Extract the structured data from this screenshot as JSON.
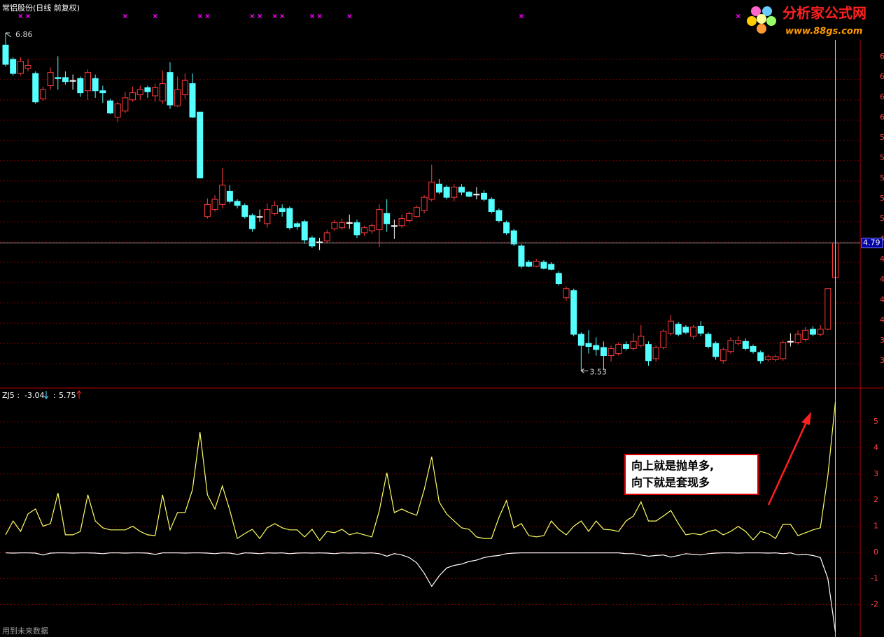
{
  "chart_data": [
    {
      "type": "candlestick",
      "title": "常铝股份(日线 前复权)",
      "up_color": "#ff3c3c",
      "down_color": "#54ffff",
      "flat_color": "#ffffff",
      "signal_color": "#ff00ff",
      "ylim": [
        3.36,
        7.06
      ],
      "yticks": [
        {
          "value": 6.6,
          "label": "6"
        },
        {
          "value": 6.4,
          "label": "6"
        },
        {
          "value": 6.2,
          "label": "6"
        },
        {
          "value": 6.0,
          "label": "6"
        },
        {
          "value": 5.8,
          "label": "5"
        },
        {
          "value": 5.6,
          "label": "5"
        },
        {
          "value": 5.4,
          "label": "5"
        },
        {
          "value": 5.2,
          "label": "5"
        },
        {
          "value": 5.0,
          "label": "5"
        },
        {
          "value": 4.8,
          "label": "4"
        },
        {
          "value": 4.6,
          "label": "4"
        },
        {
          "value": 4.4,
          "label": "4"
        },
        {
          "value": 4.2,
          "label": "4"
        },
        {
          "value": 4.0,
          "label": "4"
        },
        {
          "value": 3.8,
          "label": "3"
        },
        {
          "value": 3.6,
          "label": "3"
        }
      ],
      "grid": true,
      "signals": [
        2,
        3,
        16,
        20,
        26,
        27,
        33,
        34,
        36,
        37,
        41,
        42,
        46,
        69,
        98
      ],
      "open": [
        6.74,
        6.6,
        6.46,
        6.51,
        6.46,
        6.21,
        6.34,
        6.42,
        6.42,
        6.39,
        6.41,
        6.29,
        6.41,
        6.29,
        6.19,
        6.03,
        6.09,
        6.2,
        6.25,
        6.32,
        6.24,
        6.19,
        6.47,
        6.14,
        6.25,
        6.36,
        6.08,
        5.05,
        5.12,
        5.17,
        5.3,
        5.2,
        5.16,
        5.06,
        5.05,
        4.98,
        5.08,
        5.13,
        5.13,
        4.98,
        5.0,
        4.84,
        4.8,
        4.81,
        4.93,
        4.94,
        4.99,
        4.99,
        4.89,
        4.91,
        4.92,
        5.08,
        4.96,
        4.96,
        5.01,
        5.05,
        5.11,
        5.22,
        5.37,
        5.34,
        5.24,
        5.34,
        5.29,
        5.27,
        5.28,
        5.22,
        5.11,
        4.99,
        4.91,
        4.76,
        4.6,
        4.56,
        4.6,
        4.58,
        4.49,
        4.25,
        4.32,
        3.89,
        3.8,
        3.78,
        3.76,
        3.68,
        3.7,
        3.79,
        3.75,
        3.78,
        3.79,
        3.65,
        3.76,
        3.9,
        3.99,
        3.96,
        3.87,
        3.97,
        3.89,
        3.8,
        3.63,
        3.72,
        3.8,
        3.82,
        3.77,
        3.71,
        3.64,
        3.64,
        3.65,
        3.82,
        3.81,
        3.84,
        3.94,
        3.89,
        3.94,
        4.45
      ],
      "high": [
        6.86,
        6.62,
        6.62,
        6.6,
        6.48,
        6.33,
        6.52,
        6.63,
        6.48,
        6.45,
        6.43,
        6.5,
        6.45,
        6.34,
        6.21,
        6.18,
        6.28,
        6.33,
        6.34,
        6.34,
        6.36,
        6.49,
        6.57,
        6.43,
        6.46,
        6.46,
        6.08,
        5.23,
        5.26,
        5.53,
        5.36,
        5.22,
        5.18,
        5.08,
        5.12,
        5.18,
        5.2,
        5.17,
        5.15,
        5.0,
        5.02,
        4.86,
        4.84,
        4.92,
        5.02,
        5.03,
        5.07,
        5.02,
        4.96,
        4.98,
        5.17,
        5.22,
        5.02,
        5.07,
        5.1,
        5.16,
        5.26,
        5.56,
        5.42,
        5.36,
        5.37,
        5.37,
        5.3,
        5.34,
        5.31,
        5.24,
        5.13,
        5.01,
        4.93,
        4.78,
        4.62,
        4.63,
        4.62,
        4.6,
        4.51,
        4.36,
        4.34,
        3.91,
        3.93,
        3.86,
        3.82,
        3.78,
        3.81,
        3.82,
        3.9,
        3.98,
        3.82,
        3.78,
        3.94,
        4.08,
        4.01,
        3.98,
        3.98,
        4.02,
        3.91,
        3.82,
        3.76,
        3.86,
        3.87,
        3.85,
        3.79,
        3.73,
        3.69,
        3.69,
        3.83,
        3.9,
        3.93,
        3.96,
        3.97,
        3.98,
        4.34,
        4.79
      ],
      "low": [
        6.53,
        6.44,
        6.44,
        6.48,
        6.16,
        6.19,
        6.3,
        6.3,
        6.35,
        6.3,
        6.23,
        6.2,
        6.22,
        6.17,
        6.06,
        5.98,
        6.07,
        6.18,
        6.2,
        6.22,
        6.18,
        6.16,
        6.11,
        6.13,
        6.21,
        6.02,
        5.43,
        5.03,
        5.1,
        5.13,
        5.18,
        5.13,
        5.03,
        4.9,
        5.0,
        4.94,
        5.06,
        5.05,
        4.92,
        4.92,
        4.78,
        4.74,
        4.72,
        4.79,
        4.91,
        4.92,
        4.93,
        4.84,
        4.86,
        4.88,
        4.75,
        4.9,
        4.83,
        4.94,
        4.99,
        5.04,
        5.08,
        5.2,
        5.27,
        5.22,
        5.2,
        5.26,
        5.24,
        5.22,
        5.2,
        5.08,
        4.99,
        4.87,
        4.76,
        4.54,
        4.55,
        4.55,
        4.53,
        4.52,
        4.37,
        4.22,
        3.87,
        3.53,
        3.7,
        3.68,
        3.54,
        3.62,
        3.68,
        3.73,
        3.73,
        3.76,
        3.58,
        3.62,
        3.74,
        3.88,
        3.87,
        3.89,
        3.84,
        3.87,
        3.75,
        3.64,
        3.6,
        3.7,
        3.78,
        3.73,
        3.7,
        3.6,
        3.62,
        3.62,
        3.63,
        3.77,
        3.79,
        3.82,
        3.87,
        3.87,
        3.93,
        4.42
      ],
      "close": [
        6.55,
        6.46,
        6.58,
        6.54,
        6.18,
        6.3,
        6.47,
        6.41,
        6.38,
        6.39,
        6.27,
        6.47,
        6.29,
        6.27,
        6.07,
        6.16,
        6.22,
        6.27,
        6.3,
        6.28,
        6.32,
        6.36,
        6.15,
        6.3,
        6.39,
        6.03,
        5.43,
        5.17,
        5.22,
        5.36,
        5.2,
        5.16,
        5.05,
        4.93,
        5.05,
        5.12,
        5.16,
        5.1,
        4.94,
        4.95,
        4.82,
        4.76,
        4.8,
        4.89,
        4.99,
        4.99,
        4.99,
        4.87,
        4.94,
        4.96,
        5.12,
        4.98,
        4.96,
        5.03,
        5.08,
        5.14,
        5.24,
        5.39,
        5.29,
        5.24,
        5.34,
        5.29,
        5.25,
        5.27,
        5.22,
        5.1,
        5.01,
        4.89,
        4.78,
        4.56,
        4.56,
        4.61,
        4.54,
        4.53,
        4.39,
        4.34,
        3.89,
        3.78,
        3.77,
        3.74,
        3.68,
        3.75,
        3.79,
        3.75,
        3.82,
        3.87,
        3.63,
        3.76,
        3.92,
        4.02,
        3.89,
        3.91,
        3.96,
        3.9,
        3.77,
        3.67,
        3.74,
        3.83,
        3.83,
        3.75,
        3.72,
        3.63,
        3.67,
        3.67,
        3.81,
        3.82,
        3.89,
        3.93,
        3.89,
        3.94,
        4.34,
        4.79
      ]
    },
    {
      "type": "line",
      "title": "ZJ5 :",
      "separator": ":",
      "note": "用到未来数据",
      "annotations": [
        "向上就是抛单多,",
        "向下就是套现多"
      ],
      "ylim": [
        -3.24,
        6.26
      ],
      "yticks": [
        -2,
        -1,
        0,
        1,
        2,
        3,
        4,
        5
      ],
      "grid": true,
      "series": [
        {
          "color": "#ffff66",
          "values": [
            0.67,
            1.2,
            0.8,
            1.47,
            1.66,
            1.0,
            1.1,
            2.27,
            0.67,
            0.67,
            0.8,
            2.2,
            1.2,
            0.94,
            0.86,
            0.86,
            0.86,
            1.0,
            0.8,
            0.67,
            0.64,
            2.2,
            0.86,
            1.52,
            1.52,
            2.4,
            4.6,
            2.2,
            1.66,
            2.54,
            1.6,
            0.53,
            0.72,
            0.88,
            0.53,
            0.94,
            1.1,
            0.94,
            0.86,
            0.86,
            0.59,
            0.88,
            0.45,
            0.8,
            0.75,
            0.88,
            0.67,
            0.75,
            0.67,
            0.59,
            1.6,
            3.05,
            1.52,
            1.66,
            1.52,
            1.42,
            2.4,
            3.66,
            1.93,
            1.47,
            1.2,
            0.94,
            0.88,
            0.59,
            0.53,
            0.53,
            1.34,
            1.98,
            0.94,
            1.1,
            0.64,
            0.59,
            0.64,
            1.2,
            0.88,
            0.67,
            1.0,
            1.2,
            0.8,
            1.2,
            0.88,
            0.86,
            0.8,
            1.2,
            1.39,
            1.93,
            1.2,
            1.2,
            1.39,
            1.6,
            1.1,
            0.67,
            0.72,
            0.67,
            0.8,
            0.86,
            0.67,
            0.8,
            0.99,
            0.8,
            0.48,
            0.8,
            0.72,
            0.53,
            1.07,
            1.07,
            0.64,
            0.75,
            0.86,
            0.94,
            2.94,
            5.75
          ]
        },
        {
          "color": "#ffffff",
          "values": [
            -0.02,
            -0.03,
            -0.02,
            -0.02,
            -0.03,
            -0.1,
            -0.03,
            -0.02,
            -0.02,
            -0.03,
            -0.02,
            -0.02,
            -0.03,
            -0.05,
            -0.02,
            -0.02,
            -0.03,
            -0.02,
            -0.02,
            -0.03,
            -0.08,
            -0.02,
            -0.02,
            -0.02,
            -0.03,
            -0.02,
            -0.02,
            -0.03,
            -0.05,
            -0.02,
            -0.03,
            -0.08,
            -0.02,
            -0.03,
            -0.05,
            -0.02,
            -0.03,
            -0.02,
            -0.05,
            -0.03,
            -0.02,
            -0.03,
            -0.02,
            -0.03,
            -0.05,
            -0.02,
            -0.03,
            -0.02,
            -0.03,
            -0.02,
            -0.05,
            -0.15,
            -0.05,
            -0.1,
            -0.2,
            -0.4,
            -0.8,
            -1.3,
            -0.9,
            -0.6,
            -0.5,
            -0.45,
            -0.35,
            -0.3,
            -0.2,
            -0.15,
            -0.12,
            -0.05,
            -0.03,
            -0.02,
            -0.02,
            -0.02,
            -0.02,
            -0.02,
            -0.02,
            -0.02,
            -0.02,
            -0.02,
            -0.02,
            -0.02,
            -0.02,
            -0.02,
            -0.02,
            -0.05,
            -0.05,
            -0.1,
            -0.15,
            -0.12,
            -0.1,
            -0.18,
            -0.12,
            -0.05,
            -0.08,
            -0.1,
            -0.05,
            -0.03,
            -0.02,
            -0.02,
            -0.03,
            -0.02,
            -0.02,
            -0.02,
            -0.03,
            -0.02,
            -0.05,
            -0.02,
            -0.1,
            -0.08,
            -0.12,
            -0.2,
            -1.0,
            -3.04
          ]
        }
      ]
    }
  ],
  "logo": {
    "title": "分析家公式网",
    "url": "www.88gs.com"
  }
}
